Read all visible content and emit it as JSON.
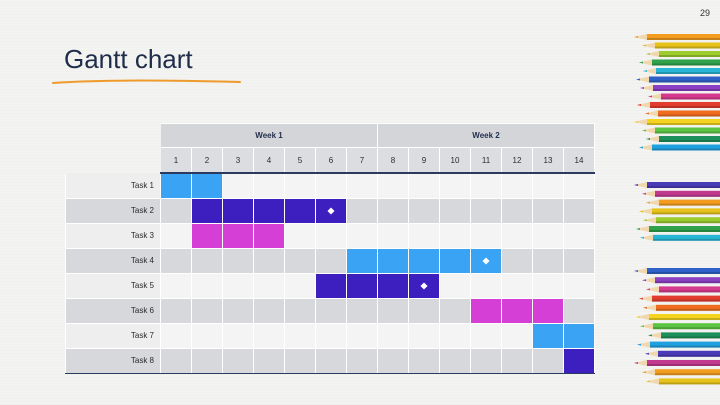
{
  "slide": {
    "page_number": "29",
    "title": "Gantt chart"
  },
  "gantt": {
    "weeks": [
      {
        "label": "Week 1",
        "span": 7
      },
      {
        "label": "Week 2",
        "span": 7
      }
    ],
    "days": [
      "1",
      "2",
      "3",
      "4",
      "5",
      "6",
      "7",
      "8",
      "9",
      "10",
      "11",
      "12",
      "13",
      "14"
    ],
    "colors": {
      "light_blue": "#3aa3f4",
      "indigo": "#3d1fbf",
      "magenta": "#d63fd6"
    },
    "tasks": [
      {
        "label": "Task 1",
        "start": 1,
        "end": 2,
        "color": "light_blue",
        "milestone": null
      },
      {
        "label": "Task 2",
        "start": 2,
        "end": 6,
        "color": "indigo",
        "milestone": 6
      },
      {
        "label": "Task 3",
        "start": 2,
        "end": 4,
        "color": "magenta",
        "milestone": null
      },
      {
        "label": "Task 4",
        "start": 7,
        "end": 11,
        "color": "light_blue",
        "milestone": 11
      },
      {
        "label": "Task 5",
        "start": 6,
        "end": 9,
        "color": "indigo",
        "milestone": 9
      },
      {
        "label": "Task 6",
        "start": 11,
        "end": 13,
        "color": "magenta",
        "milestone": null
      },
      {
        "label": "Task 7",
        "start": 13,
        "end": 14,
        "color": "light_blue",
        "milestone": null
      },
      {
        "label": "Task 8",
        "start": 14,
        "end": 14,
        "color": "indigo",
        "milestone": null
      }
    ]
  },
  "decor": {
    "pencil_colors": [
      "#f29d1f",
      "#e7c21a",
      "#9ccc2e",
      "#2fa24a",
      "#27b6d6",
      "#2e62c9",
      "#8b3fc2",
      "#d53a8f",
      "#e23c2f",
      "#f06c1f",
      "#f5d320",
      "#5cc443",
      "#1d8f5a",
      "#1fa0e0",
      "#4a3bb8",
      "#c0398f"
    ]
  }
}
